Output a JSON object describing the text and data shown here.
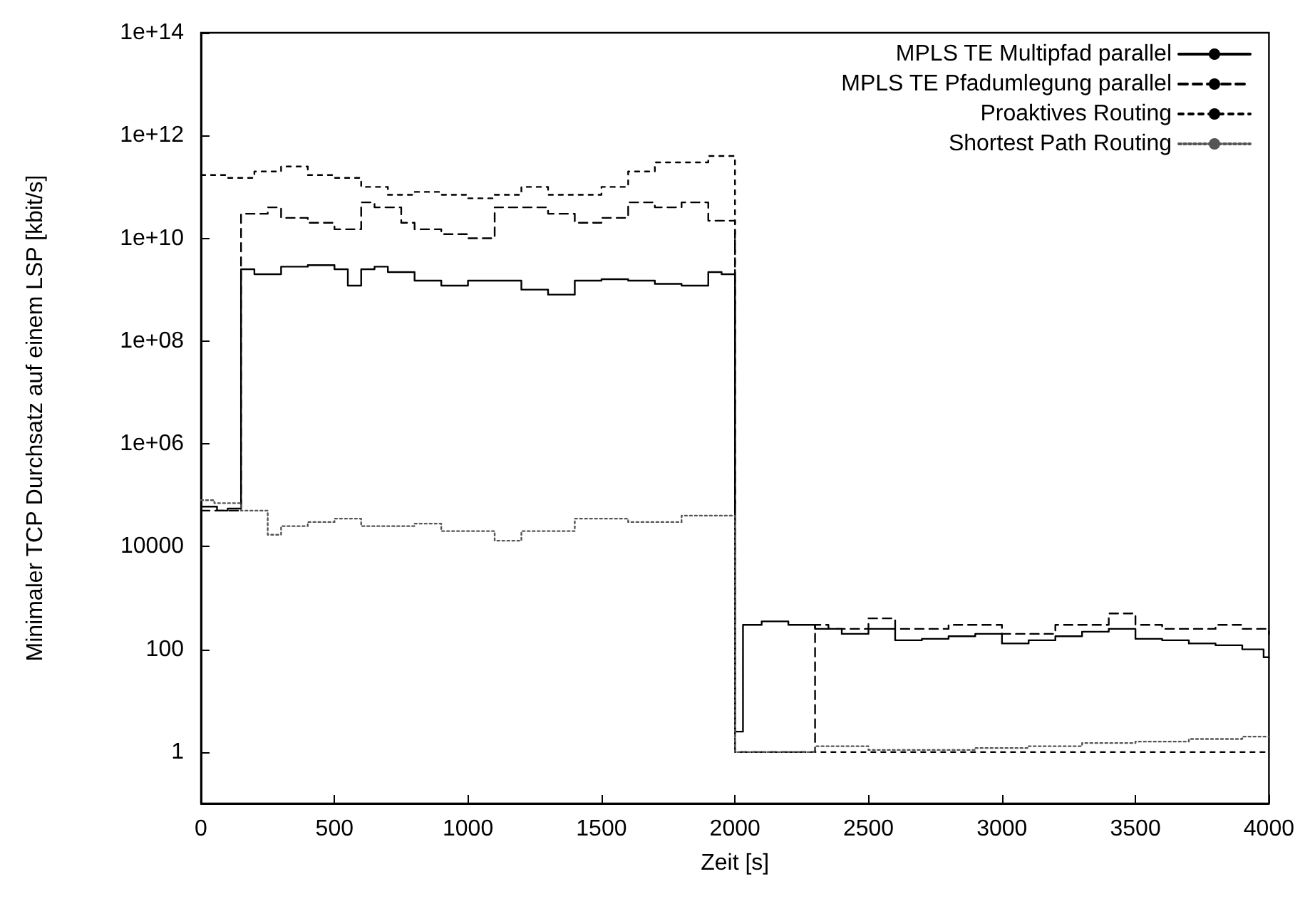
{
  "chart_data": {
    "type": "step",
    "xlabel": "Zeit [s]",
    "ylabel": "Minimaler TCP Durchsatz auf einem LSP [kbit/s]",
    "log": "y",
    "xlim": [
      0,
      4000
    ],
    "xticks": [
      0,
      500,
      1000,
      1500,
      2000,
      2500,
      3000,
      3500,
      4000
    ],
    "ylim": [
      0.1,
      100000000000000
    ],
    "yticks": [
      1,
      100,
      10000,
      {
        "value": 1000000,
        "label": "1e+06"
      },
      {
        "value": 100000000,
        "label": "1e+08"
      },
      {
        "value": 10000000000,
        "label": "1e+10"
      },
      {
        "value": 1000000000000,
        "label": "1e+12"
      },
      {
        "value": 100000000000000,
        "label": "1e+14"
      }
    ],
    "grid": false,
    "legend": "top right",
    "marker": "none",
    "series": [
      {
        "name": "MPLS TE Multipfad parallel",
        "color": "#000000",
        "line_style": "solid",
        "x": [
          0,
          60,
          100,
          150,
          200,
          300,
          400,
          500,
          550,
          600,
          650,
          700,
          800,
          900,
          1000,
          1100,
          1200,
          1300,
          1400,
          1500,
          1600,
          1700,
          1800,
          1900,
          1950,
          2000,
          2010,
          2030,
          2100,
          2200,
          2300,
          2400,
          2500,
          2600,
          2700,
          2800,
          2900,
          3000,
          3100,
          3200,
          3300,
          3400,
          3500,
          3600,
          3700,
          3800,
          3900,
          3980,
          4000
        ],
        "values": [
          60000,
          50000,
          55000,
          2500000000,
          2000000000,
          2800000000,
          3000000000,
          2500000000,
          1200000000,
          2500000000,
          2800000000,
          2200000000,
          1500000000,
          1200000000,
          1500000000,
          1500000000,
          1000000000,
          800000000,
          1500000000,
          1600000000,
          1500000000,
          1300000000,
          1200000000,
          2200000000,
          2000000000,
          2.5,
          2.5,
          300,
          350,
          300,
          250,
          200,
          250,
          150,
          160,
          180,
          200,
          130,
          150,
          180,
          220,
          250,
          160,
          150,
          130,
          120,
          100,
          70,
          70
        ]
      },
      {
        "name": "MPLS TE Pfadumlegung parallel",
        "color": "#000000",
        "line_style": "dashed",
        "x": [
          0,
          150,
          250,
          300,
          400,
          500,
          600,
          650,
          750,
          800,
          900,
          1000,
          1100,
          1300,
          1400,
          1500,
          1600,
          1700,
          1800,
          1900,
          2000,
          2300,
          2350,
          2500,
          2600,
          2800,
          3000,
          3200,
          3400,
          3500,
          3600,
          3800,
          3900,
          4000
        ],
        "values": [
          50000,
          30000000000,
          40000000000,
          25000000000,
          20000000000,
          15000000000,
          50000000000,
          40000000000,
          20000000000,
          15000000000,
          12000000000,
          10000000000,
          40000000000,
          30000000000,
          20000000000,
          25000000000,
          50000000000,
          40000000000,
          50000000000,
          22000000000,
          1,
          300,
          250,
          400,
          250,
          300,
          200,
          300,
          500,
          300,
          250,
          300,
          250,
          200
        ]
      },
      {
        "name": "Proaktives Routing",
        "color": "#000000",
        "line_style": "dashed",
        "x": [
          0,
          100,
          200,
          300,
          400,
          500,
          600,
          700,
          800,
          900,
          1000,
          1100,
          1200,
          1300,
          1400,
          1500,
          1600,
          1700,
          1800,
          1900,
          2000,
          4000
        ],
        "values": [
          170000000000,
          150000000000,
          200000000000,
          250000000000,
          170000000000,
          150000000000,
          100000000000,
          70000000000,
          80000000000,
          70000000000,
          60000000000,
          70000000000,
          100000000000,
          70000000000,
          70000000000,
          100000000000,
          200000000000,
          300000000000,
          300000000000,
          400000000000,
          1,
          1
        ]
      },
      {
        "name": "Shortest Path Routing",
        "color": "#555555",
        "line_style": "dotted",
        "x": [
          0,
          50,
          150,
          250,
          300,
          400,
          500,
          600,
          700,
          800,
          900,
          1000,
          1100,
          1200,
          1300,
          1400,
          1500,
          1600,
          1700,
          1800,
          1900,
          2000,
          2300,
          2500,
          2700,
          2900,
          3100,
          3300,
          3500,
          3700,
          3900,
          4000
        ],
        "values": [
          80000,
          70000,
          50000,
          17000,
          25000,
          30000,
          35000,
          25000,
          25000,
          28000,
          20000,
          20000,
          13000,
          20000,
          20000,
          35000,
          35000,
          30000,
          30000,
          40000,
          40000,
          1,
          1.3,
          1.1,
          1.1,
          1.2,
          1.3,
          1.5,
          1.6,
          1.8,
          2,
          2
        ]
      }
    ]
  }
}
